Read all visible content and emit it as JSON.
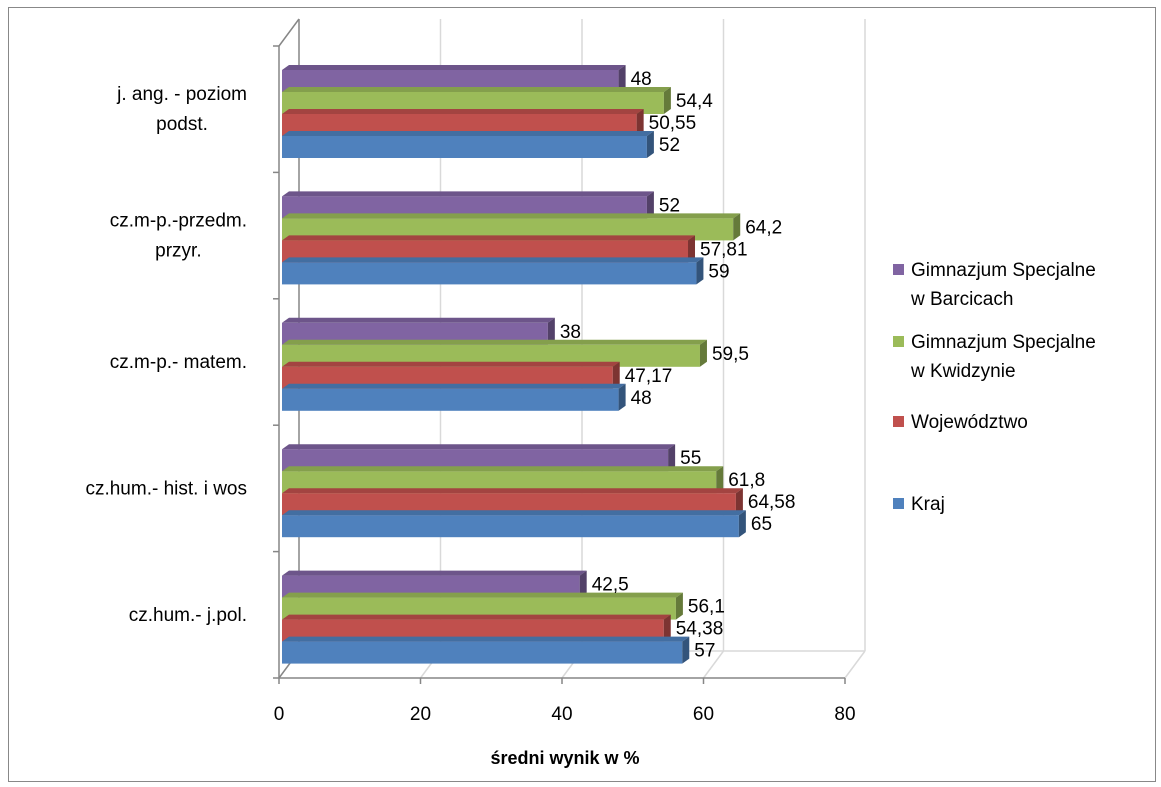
{
  "chart_data": {
    "type": "bar",
    "orientation": "horizontal",
    "three_d": true,
    "title": "",
    "xlabel": "średni wynik w %",
    "ylabel": "",
    "xlim": [
      0,
      80
    ],
    "x_ticks": [
      0,
      20,
      40,
      60,
      80
    ],
    "grid": true,
    "legend_position": "right",
    "categories": [
      "j. ang. - poziom podst.",
      "cz.m-p.-przedm. przyr.",
      "cz.m-p.- matem.",
      "cz.hum.- hist. i wos",
      "cz.hum.- j.pol."
    ],
    "category_lines": [
      [
        "j. ang. - poziom",
        "podst."
      ],
      [
        "cz.m-p.-przedm.",
        "przyr."
      ],
      [
        "cz.m-p.- matem."
      ],
      [
        "cz.hum.- hist. i wos"
      ],
      [
        "cz.hum.- j.pol."
      ]
    ],
    "series": [
      {
        "name": "Gimnazjum Specjalne w Barcicach",
        "legend_lines": [
          "Gimnazjum Specjalne",
          "w Barcicach"
        ],
        "color": "#8064A2",
        "values": [
          48,
          52,
          38,
          55,
          42.5
        ],
        "labels": [
          "48",
          "52",
          "38",
          "55",
          "42,5"
        ]
      },
      {
        "name": "Gimnazjum Specjalne w Kwidzynie",
        "legend_lines": [
          "Gimnazjum Specjalne",
          "w Kwidzynie"
        ],
        "color": "#9BBB59",
        "values": [
          54.4,
          64.2,
          59.5,
          61.8,
          56.1
        ],
        "labels": [
          "54,4",
          "64,2",
          "59,5",
          "61,8",
          "56,1"
        ]
      },
      {
        "name": "Województwo",
        "legend_lines": [
          "Województwo"
        ],
        "color": "#C0504D",
        "values": [
          50.55,
          57.81,
          47.17,
          64.58,
          54.38
        ],
        "labels": [
          "50,55",
          "57,81",
          "47,17",
          "64,58",
          "54,38"
        ]
      },
      {
        "name": "Kraj",
        "legend_lines": [
          "Kraj"
        ],
        "color": "#4F81BD",
        "values": [
          52,
          59,
          48,
          65,
          57
        ],
        "labels": [
          "52",
          "59",
          "48",
          "65",
          "57"
        ]
      }
    ]
  }
}
